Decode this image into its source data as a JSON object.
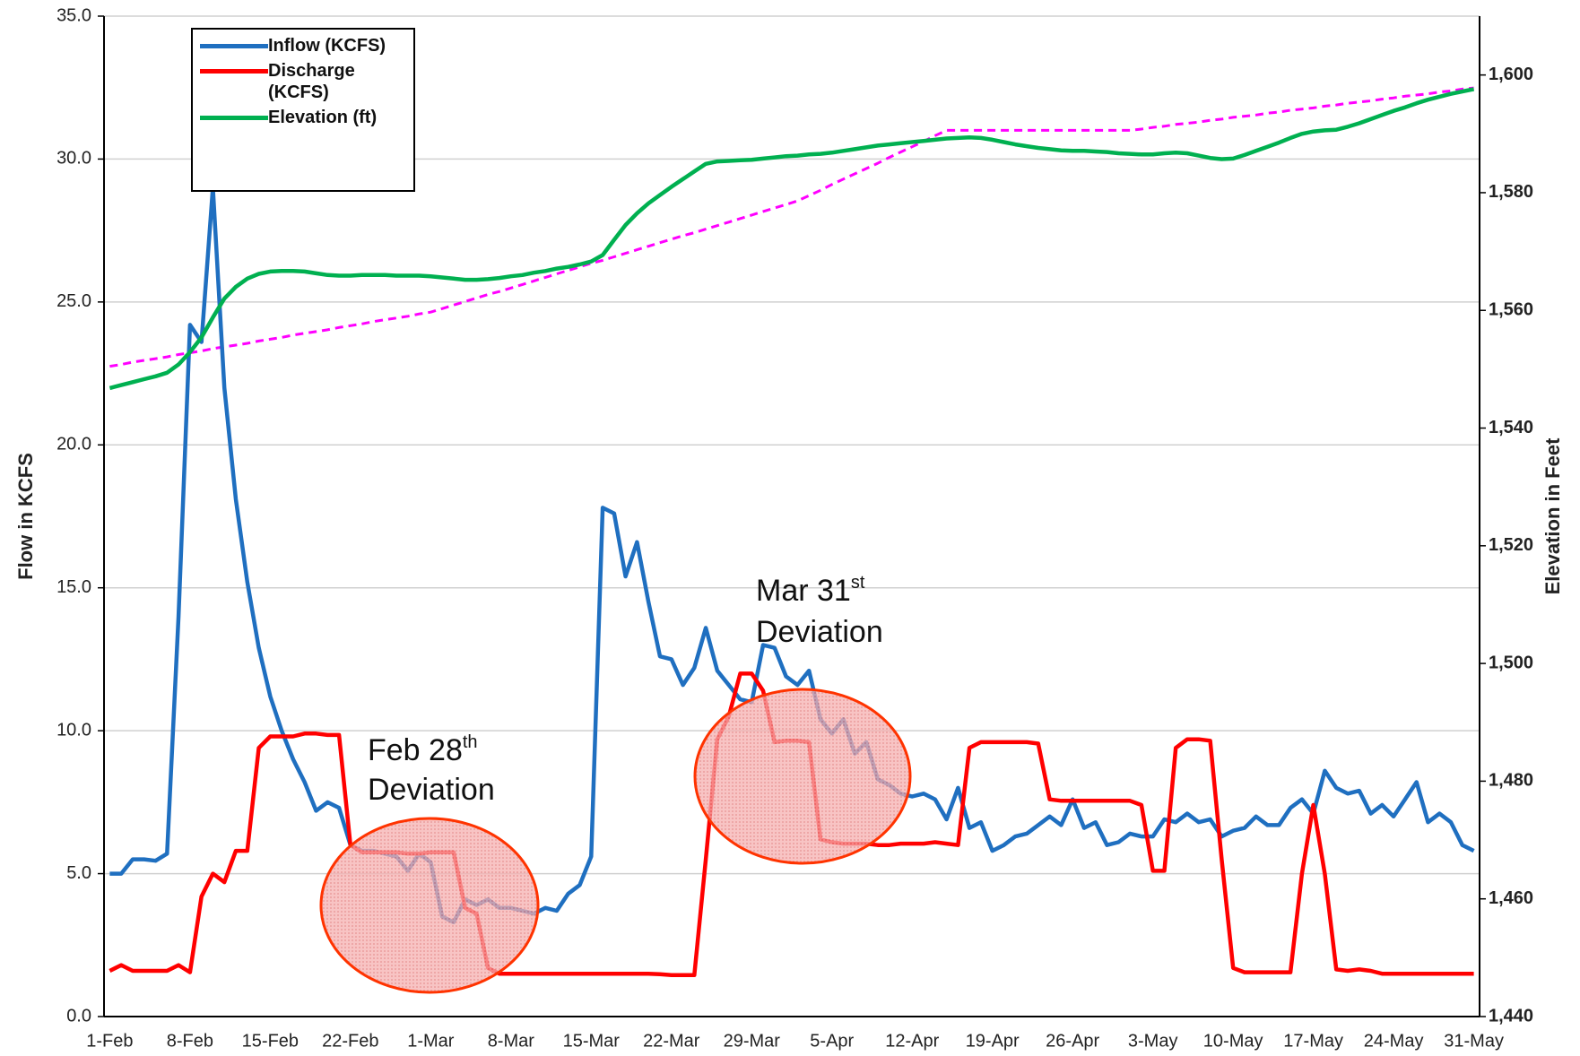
{
  "chart_data": {
    "type": "line",
    "categories": [
      "1-Feb",
      null,
      null,
      null,
      null,
      null,
      null,
      "8-Feb",
      null,
      null,
      null,
      null,
      null,
      null,
      "15-Feb",
      null,
      null,
      null,
      null,
      null,
      null,
      "22-Feb",
      null,
      null,
      null,
      null,
      null,
      null,
      "1-Mar",
      null,
      null,
      null,
      null,
      null,
      null,
      "8-Mar",
      null,
      null,
      null,
      null,
      null,
      null,
      "15-Mar",
      null,
      null,
      null,
      null,
      null,
      null,
      "22-Mar",
      null,
      null,
      null,
      null,
      null,
      null,
      "29-Mar",
      null,
      null,
      null,
      null,
      null,
      null,
      "5-Apr",
      null,
      null,
      null,
      null,
      null,
      null,
      "12-Apr",
      null,
      null,
      null,
      null,
      null,
      null,
      "19-Apr",
      null,
      null,
      null,
      null,
      null,
      null,
      "26-Apr",
      null,
      null,
      null,
      null,
      null,
      null,
      "3-May",
      null,
      null,
      null,
      null,
      null,
      null,
      "10-May",
      null,
      null,
      null,
      null,
      null,
      null,
      "17-May",
      null,
      null,
      null,
      null,
      null,
      null,
      "24-May",
      null,
      null,
      null,
      null,
      null,
      null,
      "31-May"
    ],
    "series": [
      {
        "name": "Inflow (KCFS)",
        "color": "#1f6fc0",
        "values": [
          5.0,
          5.0,
          5.5,
          5.5,
          5.45,
          5.7,
          14,
          24.2,
          23.6,
          29.0,
          22,
          18.1,
          15.2,
          12.9,
          11.2,
          10.0,
          9.0,
          8.2,
          7.2,
          7.5,
          7.3,
          6.0,
          5.8,
          5.8,
          5.7,
          5.6,
          5.1,
          5.7,
          5.4,
          3.5,
          3.3,
          4.1,
          3.9,
          4.1,
          3.8,
          3.8,
          3.7,
          3.6,
          3.8,
          3.7,
          4.3,
          4.6,
          5.6,
          17.8,
          17.6,
          15.4,
          16.6,
          14.5,
          12.6,
          12.5,
          11.6,
          12.2,
          13.6,
          12.1,
          11.6,
          11.1,
          11.0,
          13.0,
          12.9,
          11.9,
          11.6,
          12.1,
          10.4,
          9.9,
          10.4,
          9.2,
          9.6,
          8.3,
          8.1,
          7.8,
          7.7,
          7.8,
          7.6,
          6.9,
          8.0,
          6.6,
          6.8,
          5.8,
          6.0,
          6.3,
          6.4,
          6.7,
          7.0,
          6.7,
          7.6,
          6.6,
          6.8,
          6.0,
          6.1,
          6.4,
          6.3,
          6.3,
          6.9,
          6.8,
          7.1,
          6.8,
          6.9,
          6.3,
          6.5,
          6.6,
          7.0,
          6.7,
          6.7,
          7.3,
          7.6,
          7.1,
          8.6,
          8.0,
          7.8,
          7.9,
          7.1,
          7.4,
          7.0,
          7.6,
          8.2,
          6.8,
          7.1,
          6.8,
          6.0,
          5.8
        ]
      },
      {
        "name": "Discharge (KCFS)",
        "color": "#ff0000",
        "values": [
          1.6,
          1.8,
          1.6,
          1.6,
          1.6,
          1.6,
          1.8,
          1.55,
          4.2,
          5.0,
          4.7,
          5.8,
          5.8,
          9.4,
          9.8,
          9.8,
          9.8,
          9.9,
          9.9,
          9.85,
          9.85,
          6.0,
          5.75,
          5.75,
          5.75,
          5.75,
          5.7,
          5.7,
          5.75,
          5.75,
          5.75,
          3.8,
          3.6,
          1.7,
          1.5,
          1.5,
          1.5,
          1.5,
          1.5,
          1.5,
          1.5,
          1.5,
          1.5,
          1.5,
          1.5,
          1.5,
          1.5,
          1.5,
          1.48,
          1.45,
          1.45,
          1.45,
          5.5,
          9.7,
          10.5,
          12.0,
          12.0,
          11.4,
          9.6,
          9.65,
          9.65,
          9.6,
          6.2,
          6.1,
          6.05,
          6.05,
          6.05,
          6.0,
          6.0,
          6.05,
          6.05,
          6.05,
          6.1,
          6.05,
          6.0,
          9.4,
          9.6,
          9.6,
          9.6,
          9.6,
          9.6,
          9.55,
          7.6,
          7.55,
          7.55,
          7.55,
          7.55,
          7.55,
          7.55,
          7.55,
          7.4,
          5.1,
          5.1,
          9.4,
          9.7,
          9.7,
          9.65,
          5.5,
          1.7,
          1.55,
          1.55,
          1.55,
          1.55,
          1.55,
          5.0,
          7.4,
          5.0,
          1.65,
          1.6,
          1.65,
          1.6,
          1.5,
          1.5,
          1.5,
          1.5,
          1.5,
          1.5,
          1.5,
          1.5,
          1.5
        ]
      },
      {
        "name": "Elevation (ft)",
        "color": "#00b050",
        "axis": "y2",
        "values": [
          1546.8,
          1547.3,
          1547.8,
          1548.3,
          1548.8,
          1549.4,
          1550.8,
          1552.9,
          1555.4,
          1558.8,
          1562.0,
          1564.0,
          1565.4,
          1566.2,
          1566.6,
          1566.7,
          1566.7,
          1566.6,
          1566.3,
          1566.0,
          1565.9,
          1565.9,
          1566.0,
          1566.0,
          1566.0,
          1565.9,
          1565.9,
          1565.9,
          1565.8,
          1565.6,
          1565.4,
          1565.2,
          1565.2,
          1565.3,
          1565.5,
          1565.8,
          1566.0,
          1566.4,
          1566.7,
          1567.1,
          1567.4,
          1567.8,
          1568.3,
          1569.4,
          1572.0,
          1574.5,
          1576.5,
          1578.2,
          1579.6,
          1581.0,
          1582.3,
          1583.6,
          1584.9,
          1585.3,
          1585.4,
          1585.5,
          1585.6,
          1585.8,
          1586.0,
          1586.2,
          1586.3,
          1586.5,
          1586.6,
          1586.8,
          1587.1,
          1587.4,
          1587.7,
          1588.0,
          1588.2,
          1588.4,
          1588.6,
          1588.8,
          1589.0,
          1589.2,
          1589.3,
          1589.4,
          1589.3,
          1589.0,
          1588.6,
          1588.2,
          1587.9,
          1587.6,
          1587.4,
          1587.2,
          1587.1,
          1587.1,
          1587.0,
          1586.9,
          1586.7,
          1586.6,
          1586.5,
          1586.5,
          1586.7,
          1586.8,
          1586.7,
          1586.3,
          1585.9,
          1585.7,
          1585.8,
          1586.4,
          1587.1,
          1587.8,
          1588.5,
          1589.3,
          1590.0,
          1590.4,
          1590.6,
          1590.7,
          1591.2,
          1591.8,
          1592.5,
          1593.2,
          1593.9,
          1594.5,
          1595.2,
          1595.8,
          1596.3,
          1596.8,
          1597.2,
          1597.6
        ]
      },
      {
        "color": "#ff00ff",
        "axis": "y2",
        "dashed": true,
        "values": [
          1550.5,
          1550.8,
          1551.2,
          1551.5,
          1551.8,
          1552.1,
          1552.5,
          1552.8,
          1553.1,
          1553.5,
          1553.8,
          1554.1,
          1554.4,
          1554.8,
          1555.1,
          1555.4,
          1555.8,
          1556.1,
          1556.4,
          1556.7,
          1557.1,
          1557.4,
          1557.7,
          1558.1,
          1558.4,
          1558.7,
          1559.0,
          1559.4,
          1559.7,
          1560.3,
          1560.9,
          1561.5,
          1562.1,
          1562.7,
          1563.2,
          1563.8,
          1564.4,
          1565.0,
          1565.6,
          1566.2,
          1566.8,
          1567.4,
          1568.0,
          1568.5,
          1569.1,
          1569.7,
          1570.3,
          1570.9,
          1571.5,
          1572.1,
          1572.7,
          1573.2,
          1573.8,
          1574.4,
          1575.0,
          1575.6,
          1576.2,
          1576.8,
          1577.4,
          1578.0,
          1578.6,
          1579.5,
          1580.4,
          1581.4,
          1582.3,
          1583.2,
          1584.1,
          1585.0,
          1586.0,
          1586.9,
          1587.8,
          1588.7,
          1589.7,
          1590.6,
          1590.6,
          1590.6,
          1590.6,
          1590.6,
          1590.6,
          1590.6,
          1590.6,
          1590.6,
          1590.6,
          1590.6,
          1590.6,
          1590.6,
          1590.6,
          1590.6,
          1590.6,
          1590.6,
          1590.8,
          1591.1,
          1591.3,
          1591.6,
          1591.8,
          1592.0,
          1592.3,
          1592.5,
          1592.8,
          1593.0,
          1593.2,
          1593.5,
          1593.7,
          1594.0,
          1594.2,
          1594.4,
          1594.7,
          1594.9,
          1595.2,
          1595.4,
          1595.6,
          1595.9,
          1596.1,
          1596.4,
          1596.6,
          1596.8,
          1597.1,
          1597.3,
          1597.6,
          1597.8
        ]
      }
    ],
    "ylabel": "Flow in KCFS",
    "y2label": "Elevation in Feet",
    "ylim": [
      0,
      35
    ],
    "yticks": [
      {
        "value": 0,
        "label": "0.0"
      },
      {
        "value": 5,
        "label": "5.0"
      },
      {
        "value": 10,
        "label": "10.0"
      },
      {
        "value": 15,
        "label": "15.0"
      },
      {
        "value": 20,
        "label": "20.0"
      },
      {
        "value": 25,
        "label": "25.0"
      },
      {
        "value": 30,
        "label": "30.0"
      },
      {
        "value": 35,
        "label": "35.0"
      }
    ],
    "y2lim": [
      1440,
      1610
    ],
    "y2ticks": [
      {
        "value": 1440,
        "label": "1,440"
      },
      {
        "value": 1460,
        "label": "1,460"
      },
      {
        "value": 1480,
        "label": "1,480"
      },
      {
        "value": 1500,
        "label": "1,500"
      },
      {
        "value": 1520,
        "label": "1,520"
      },
      {
        "value": 1540,
        "label": "1,540"
      },
      {
        "value": 1560,
        "label": "1,560"
      },
      {
        "value": 1580,
        "label": "1,580"
      },
      {
        "value": 1600,
        "label": "1,600"
      }
    ],
    "grid": true,
    "annotations": [
      {
        "text": "Feb 28",
        "sup": "th",
        "line2": "Deviation"
      },
      {
        "text": "Mar 31",
        "sup": "st",
        "line2": "Deviation"
      }
    ]
  }
}
